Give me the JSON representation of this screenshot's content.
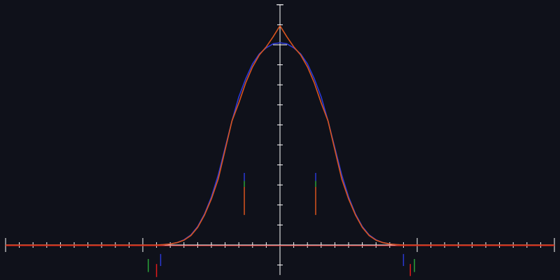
{
  "chart_data": {
    "type": "line",
    "title": "",
    "xlabel": "",
    "ylabel": "",
    "background": "#0f111a",
    "axis_color": "#ffffff",
    "grid": false,
    "xlim": [
      -20,
      20
    ],
    "ylim": [
      -1.5,
      12
    ],
    "x_tick_step": 1,
    "y_tick_step": 1,
    "legend": "none",
    "x_axis_line_color": "#e01b1b",
    "series": [
      {
        "color": "#2b39d6",
        "stroke_width": 1.6,
        "x": [
          -20,
          -10,
          -9,
          -8.5,
          -8,
          -7.5,
          -7,
          -6.5,
          -6,
          -5.5,
          -5,
          -4.5,
          -4,
          -3.5,
          -3,
          -2.5,
          -2,
          -1.5,
          -1,
          -0.5,
          0,
          0.5,
          1,
          1.5,
          2,
          2.5,
          3,
          3.5,
          4,
          4.5,
          5,
          5.5,
          6,
          6.5,
          7,
          7.5,
          8,
          8.5,
          9,
          10,
          20
        ],
        "y": [
          0,
          0,
          0,
          0.02,
          0.05,
          0.12,
          0.26,
          0.5,
          0.92,
          1.55,
          2.4,
          3.5,
          4.85,
          6.2,
          7.4,
          8.3,
          9.05,
          9.55,
          9.85,
          10.05,
          10.1,
          10.05,
          9.85,
          9.55,
          9.05,
          8.3,
          7.4,
          6.2,
          4.85,
          3.5,
          2.4,
          1.55,
          0.92,
          0.5,
          0.26,
          0.12,
          0.05,
          0.02,
          0,
          0,
          0
        ]
      },
      {
        "color": "#d9541e",
        "stroke_width": 1.6,
        "x": [
          -20,
          -10,
          -9,
          -8.5,
          -8,
          -7.5,
          -7,
          -6.5,
          -6,
          -5.5,
          -5,
          -4.5,
          -4,
          -3.5,
          -3,
          -2.5,
          -2,
          -1.5,
          -1,
          -0.5,
          0,
          0.5,
          1,
          1.5,
          2,
          2.5,
          3,
          3.5,
          4,
          4.5,
          5,
          5.5,
          6,
          6.5,
          7,
          7.5,
          8,
          8.5,
          9,
          10,
          20
        ],
        "y": [
          0,
          0,
          0,
          0.02,
          0.05,
          0.12,
          0.24,
          0.47,
          0.88,
          1.5,
          2.3,
          3.3,
          4.75,
          6.2,
          7.1,
          8.1,
          8.9,
          9.5,
          9.9,
          10.4,
          10.95,
          10.4,
          9.9,
          9.5,
          8.9,
          8.1,
          7.1,
          6.2,
          4.75,
          3.3,
          2.3,
          1.5,
          0.88,
          0.47,
          0.24,
          0.12,
          0.05,
          0.02,
          0,
          0,
          0
        ]
      }
    ],
    "markers": [
      {
        "x": -2.6,
        "y0": 3.6,
        "y1": 1.5,
        "segments": [
          {
            "color": "#2b39d6",
            "from": 3.6,
            "to": 3.2
          },
          {
            "color": "#2aa23a",
            "from": 3.2,
            "to": 2.9
          },
          {
            "color": "#d9541e",
            "from": 2.9,
            "to": 1.5
          }
        ]
      },
      {
        "x": 2.6,
        "y0": 3.6,
        "y1": 1.5,
        "segments": [
          {
            "color": "#2b39d6",
            "from": 3.6,
            "to": 3.2
          },
          {
            "color": "#2aa23a",
            "from": 3.2,
            "to": 2.9
          },
          {
            "color": "#d9541e",
            "from": 2.9,
            "to": 1.5
          }
        ]
      },
      {
        "x": -9.6,
        "y0": -0.7,
        "y1": -1.35,
        "segments": [
          {
            "color": "#2aa23a",
            "from": -0.7,
            "to": -1.35
          }
        ]
      },
      {
        "x": -9.0,
        "y0": -0.95,
        "y1": -1.6,
        "segments": [
          {
            "color": "#e01b1b",
            "from": -0.95,
            "to": -1.6
          }
        ]
      },
      {
        "x": -8.7,
        "y0": -0.45,
        "y1": -1.05,
        "segments": [
          {
            "color": "#2b39d6",
            "from": -0.45,
            "to": -1.05
          }
        ]
      },
      {
        "x": 9.0,
        "y0": -0.45,
        "y1": -1.05,
        "segments": [
          {
            "color": "#2b39d6",
            "from": -0.45,
            "to": -1.05
          }
        ]
      },
      {
        "x": 9.5,
        "y0": -0.95,
        "y1": -1.55,
        "segments": [
          {
            "color": "#e01b1b",
            "from": -0.95,
            "to": -1.55
          }
        ]
      },
      {
        "x": 9.8,
        "y0": -0.7,
        "y1": -1.35,
        "segments": [
          {
            "color": "#2aa23a",
            "from": -0.7,
            "to": -1.35
          }
        ]
      }
    ]
  }
}
